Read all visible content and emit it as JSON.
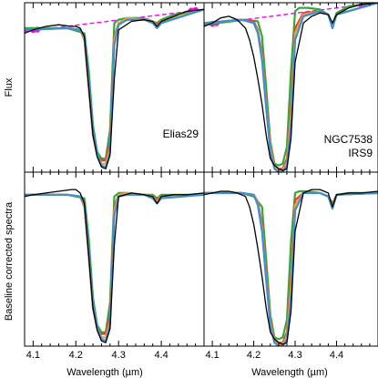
{
  "chart_data": [
    {
      "type": "line",
      "panel": "top-left",
      "annotation": [
        "Elias29"
      ],
      "ylabel": "Flux",
      "xlim": [
        4.08,
        4.5
      ],
      "ylim": [
        0.0,
        1.0
      ],
      "baseline": {
        "x": [
          4.08,
          4.5
        ],
        "y": [
          0.83,
          0.96
        ]
      },
      "baseline_points": {
        "x": [
          4.1,
          4.11,
          4.47,
          4.48
        ],
        "y": [
          0.839,
          0.842,
          0.954,
          0.957
        ]
      },
      "series": [
        {
          "color": "#000000",
          "x": [
            4.08,
            4.1,
            4.13,
            4.16,
            4.19,
            4.2,
            4.21,
            4.22,
            4.23,
            4.24,
            4.25,
            4.26,
            4.27,
            4.28,
            4.29,
            4.3,
            4.33,
            4.36,
            4.38,
            4.39,
            4.4,
            4.43,
            4.46,
            4.5
          ],
          "y": [
            0.82,
            0.84,
            0.86,
            0.87,
            0.86,
            0.86,
            0.85,
            0.8,
            0.5,
            0.22,
            0.09,
            0.03,
            0.02,
            0.1,
            0.55,
            0.84,
            0.89,
            0.9,
            0.89,
            0.86,
            0.89,
            0.92,
            0.95,
            0.96
          ]
        },
        {
          "color": "#33aa33",
          "x": [
            4.08,
            4.18,
            4.22,
            4.23,
            4.24,
            4.25,
            4.26,
            4.27,
            4.28,
            4.29,
            4.3,
            4.32,
            4.35,
            4.37,
            4.38,
            4.39,
            4.4,
            4.43,
            4.5
          ],
          "y": [
            0.85,
            0.85,
            0.82,
            0.6,
            0.28,
            0.12,
            0.08,
            0.08,
            0.25,
            0.88,
            0.9,
            0.91,
            0.91,
            0.9,
            0.89,
            0.88,
            0.9,
            0.93,
            0.96
          ]
        },
        {
          "color": "#e8402a",
          "x": [
            4.08,
            4.18,
            4.21,
            4.22,
            4.23,
            4.24,
            4.25,
            4.26,
            4.27,
            4.28,
            4.29,
            4.3,
            4.32,
            4.36,
            4.38,
            4.39,
            4.4,
            4.5
          ],
          "y": [
            0.84,
            0.85,
            0.84,
            0.78,
            0.5,
            0.22,
            0.1,
            0.07,
            0.07,
            0.18,
            0.8,
            0.88,
            0.9,
            0.9,
            0.89,
            0.87,
            0.89,
            0.96
          ]
        },
        {
          "color": "#f0a040",
          "x": [
            4.08,
            4.18,
            4.21,
            4.22,
            4.23,
            4.24,
            4.25,
            4.26,
            4.27,
            4.28,
            4.29,
            4.3,
            4.32,
            4.36,
            4.38,
            4.39,
            4.4,
            4.5
          ],
          "y": [
            0.84,
            0.85,
            0.84,
            0.79,
            0.52,
            0.23,
            0.1,
            0.05,
            0.05,
            0.14,
            0.78,
            0.88,
            0.91,
            0.9,
            0.89,
            0.86,
            0.89,
            0.96
          ]
        },
        {
          "color": "#3a8fd8",
          "x": [
            4.08,
            4.18,
            4.21,
            4.22,
            4.23,
            4.24,
            4.25,
            4.26,
            4.27,
            4.28,
            4.29,
            4.3,
            4.32,
            4.36,
            4.38,
            4.39,
            4.4,
            4.5
          ],
          "y": [
            0.84,
            0.85,
            0.84,
            0.8,
            0.55,
            0.25,
            0.11,
            0.04,
            0.03,
            0.12,
            0.75,
            0.87,
            0.9,
            0.9,
            0.88,
            0.85,
            0.88,
            0.96
          ]
        }
      ]
    },
    {
      "type": "line",
      "panel": "top-right",
      "annotation": [
        "NGC7538",
        "IRS9"
      ],
      "xlim": [
        4.08,
        4.5
      ],
      "ylim": [
        0.0,
        1.0
      ],
      "baseline": {
        "x": [
          4.08,
          4.5
        ],
        "y": [
          0.87,
          1.0
        ]
      },
      "baseline_points": {
        "x": [
          4.1,
          4.11,
          4.46,
          4.47
        ],
        "y": [
          0.876,
          0.879,
          0.986,
          0.989
        ]
      },
      "series": [
        {
          "color": "#000000",
          "x": [
            4.08,
            4.1,
            4.12,
            4.14,
            4.16,
            4.18,
            4.19,
            4.2,
            4.21,
            4.22,
            4.23,
            4.24,
            4.25,
            4.26,
            4.27,
            4.28,
            4.29,
            4.3,
            4.32,
            4.34,
            4.36,
            4.38,
            4.39,
            4.4,
            4.43,
            4.46,
            4.5
          ],
          "y": [
            0.86,
            0.88,
            0.91,
            0.92,
            0.9,
            0.85,
            0.78,
            0.68,
            0.55,
            0.4,
            0.22,
            0.08,
            0.04,
            0.02,
            0.01,
            0.02,
            0.2,
            0.65,
            0.88,
            0.92,
            0.94,
            0.93,
            0.88,
            0.93,
            0.97,
            0.99,
            1.0
          ]
        },
        {
          "color": "#33aa33",
          "x": [
            4.08,
            4.18,
            4.21,
            4.22,
            4.23,
            4.24,
            4.25,
            4.26,
            4.27,
            4.28,
            4.29,
            4.3,
            4.31,
            4.33,
            4.36,
            4.38,
            4.39,
            4.4,
            4.43,
            4.5
          ],
          "y": [
            0.87,
            0.9,
            0.89,
            0.8,
            0.5,
            0.18,
            0.05,
            0.04,
            0.05,
            0.15,
            0.6,
            0.95,
            0.97,
            0.97,
            0.96,
            0.93,
            0.87,
            0.94,
            0.98,
            1.0
          ]
        },
        {
          "color": "#e8402a",
          "x": [
            4.08,
            4.17,
            4.2,
            4.21,
            4.22,
            4.23,
            4.24,
            4.25,
            4.26,
            4.27,
            4.28,
            4.29,
            4.3,
            4.32,
            4.36,
            4.38,
            4.39,
            4.4,
            4.5
          ],
          "y": [
            0.88,
            0.9,
            0.89,
            0.84,
            0.7,
            0.42,
            0.15,
            0.04,
            0.02,
            0.02,
            0.08,
            0.4,
            0.85,
            0.94,
            0.95,
            0.93,
            0.86,
            0.93,
            1.0
          ]
        },
        {
          "color": "#f0a040",
          "x": [
            4.08,
            4.17,
            4.2,
            4.21,
            4.22,
            4.23,
            4.24,
            4.25,
            4.26,
            4.27,
            4.28,
            4.29,
            4.3,
            4.32,
            4.36,
            4.38,
            4.39,
            4.4,
            4.5
          ],
          "y": [
            0.88,
            0.9,
            0.88,
            0.83,
            0.68,
            0.4,
            0.14,
            0.03,
            0.01,
            0.01,
            0.06,
            0.35,
            0.82,
            0.93,
            0.95,
            0.93,
            0.86,
            0.93,
            1.0
          ]
        },
        {
          "color": "#3a8fd8",
          "x": [
            4.08,
            4.17,
            4.2,
            4.21,
            4.22,
            4.23,
            4.24,
            4.25,
            4.26,
            4.27,
            4.28,
            4.29,
            4.3,
            4.32,
            4.36,
            4.38,
            4.39,
            4.4,
            4.5
          ],
          "y": [
            0.88,
            0.9,
            0.88,
            0.82,
            0.66,
            0.38,
            0.12,
            0.02,
            0.0,
            0.0,
            0.04,
            0.28,
            0.78,
            0.92,
            0.95,
            0.93,
            0.85,
            0.93,
            1.0
          ]
        }
      ]
    },
    {
      "type": "line",
      "panel": "bottom-left",
      "ylabel": "Baseline corrected spectra",
      "xlabel": "Wavelength (µm)",
      "xlim": [
        4.08,
        4.5
      ],
      "ylim": [
        0.0,
        1.0
      ],
      "x_ticks": [
        4.1,
        4.2,
        4.3,
        4.4
      ],
      "series": [
        {
          "color": "#000000",
          "x": [
            4.08,
            4.1,
            4.13,
            4.16,
            4.19,
            4.2,
            4.21,
            4.22,
            4.23,
            4.24,
            4.25,
            4.26,
            4.27,
            4.28,
            4.29,
            4.3,
            4.33,
            4.36,
            4.38,
            4.39,
            4.4,
            4.43,
            4.46,
            4.5
          ],
          "y": [
            0.86,
            0.87,
            0.88,
            0.89,
            0.9,
            0.9,
            0.88,
            0.82,
            0.52,
            0.22,
            0.09,
            0.03,
            0.02,
            0.1,
            0.58,
            0.86,
            0.88,
            0.87,
            0.86,
            0.82,
            0.86,
            0.87,
            0.87,
            0.88
          ]
        },
        {
          "color": "#33aa33",
          "x": [
            4.08,
            4.18,
            4.22,
            4.23,
            4.24,
            4.25,
            4.26,
            4.27,
            4.28,
            4.29,
            4.3,
            4.32,
            4.36,
            4.38,
            4.39,
            4.4,
            4.43,
            4.5
          ],
          "y": [
            0.87,
            0.87,
            0.85,
            0.62,
            0.28,
            0.12,
            0.08,
            0.08,
            0.25,
            0.86,
            0.88,
            0.88,
            0.87,
            0.87,
            0.85,
            0.87,
            0.87,
            0.87
          ]
        },
        {
          "color": "#e8402a",
          "x": [
            4.08,
            4.18,
            4.21,
            4.22,
            4.23,
            4.24,
            4.25,
            4.26,
            4.27,
            4.28,
            4.29,
            4.3,
            4.32,
            4.36,
            4.38,
            4.39,
            4.4,
            4.5
          ],
          "y": [
            0.87,
            0.87,
            0.86,
            0.8,
            0.52,
            0.22,
            0.1,
            0.07,
            0.07,
            0.18,
            0.8,
            0.87,
            0.88,
            0.87,
            0.86,
            0.84,
            0.86,
            0.87
          ]
        },
        {
          "color": "#f0a040",
          "x": [
            4.08,
            4.18,
            4.21,
            4.22,
            4.23,
            4.24,
            4.25,
            4.26,
            4.27,
            4.28,
            4.29,
            4.3,
            4.32,
            4.36,
            4.38,
            4.39,
            4.4,
            4.5
          ],
          "y": [
            0.87,
            0.87,
            0.86,
            0.81,
            0.54,
            0.23,
            0.1,
            0.05,
            0.05,
            0.14,
            0.78,
            0.87,
            0.88,
            0.87,
            0.86,
            0.83,
            0.86,
            0.87
          ]
        },
        {
          "color": "#3a8fd8",
          "x": [
            4.08,
            4.18,
            4.21,
            4.22,
            4.23,
            4.24,
            4.25,
            4.26,
            4.27,
            4.28,
            4.29,
            4.3,
            4.32,
            4.36,
            4.38,
            4.39,
            4.4,
            4.5
          ],
          "y": [
            0.87,
            0.87,
            0.86,
            0.82,
            0.56,
            0.25,
            0.11,
            0.04,
            0.03,
            0.12,
            0.75,
            0.86,
            0.87,
            0.87,
            0.85,
            0.82,
            0.85,
            0.87
          ]
        }
      ]
    },
    {
      "type": "line",
      "panel": "bottom-right",
      "xlabel": "Wavelength (µm)",
      "xlim": [
        4.08,
        4.5
      ],
      "ylim": [
        0.0,
        1.0
      ],
      "x_ticks": [
        4.1,
        4.2,
        4.3,
        4.4
      ],
      "series": [
        {
          "color": "#000000",
          "x": [
            4.08,
            4.1,
            4.12,
            4.14,
            4.16,
            4.18,
            4.19,
            4.2,
            4.21,
            4.22,
            4.23,
            4.24,
            4.25,
            4.26,
            4.27,
            4.28,
            4.29,
            4.3,
            4.32,
            4.34,
            4.36,
            4.38,
            4.39,
            4.4,
            4.43,
            4.46,
            4.5
          ],
          "y": [
            0.87,
            0.88,
            0.89,
            0.89,
            0.88,
            0.86,
            0.8,
            0.7,
            0.56,
            0.4,
            0.22,
            0.08,
            0.04,
            0.02,
            0.01,
            0.02,
            0.2,
            0.66,
            0.88,
            0.9,
            0.9,
            0.88,
            0.8,
            0.87,
            0.88,
            0.88,
            0.89
          ]
        },
        {
          "color": "#33aa33",
          "x": [
            4.08,
            4.17,
            4.2,
            4.22,
            4.23,
            4.24,
            4.25,
            4.26,
            4.27,
            4.28,
            4.29,
            4.3,
            4.31,
            4.33,
            4.36,
            4.38,
            4.39,
            4.4,
            4.43,
            4.5
          ],
          "y": [
            0.88,
            0.88,
            0.86,
            0.8,
            0.5,
            0.18,
            0.05,
            0.04,
            0.05,
            0.15,
            0.6,
            0.88,
            0.89,
            0.89,
            0.88,
            0.86,
            0.82,
            0.87,
            0.88,
            0.88
          ]
        },
        {
          "color": "#e8402a",
          "x": [
            4.08,
            4.17,
            4.2,
            4.21,
            4.22,
            4.23,
            4.24,
            4.25,
            4.26,
            4.27,
            4.28,
            4.29,
            4.3,
            4.32,
            4.36,
            4.38,
            4.39,
            4.4,
            4.5
          ],
          "y": [
            0.88,
            0.88,
            0.87,
            0.83,
            0.7,
            0.42,
            0.15,
            0.04,
            0.02,
            0.02,
            0.08,
            0.4,
            0.84,
            0.88,
            0.88,
            0.86,
            0.81,
            0.87,
            0.88
          ]
        },
        {
          "color": "#f0a040",
          "x": [
            4.08,
            4.17,
            4.2,
            4.21,
            4.22,
            4.23,
            4.24,
            4.25,
            4.26,
            4.27,
            4.28,
            4.29,
            4.3,
            4.32,
            4.36,
            4.38,
            4.39,
            4.4,
            4.5
          ],
          "y": [
            0.88,
            0.88,
            0.87,
            0.82,
            0.68,
            0.4,
            0.14,
            0.03,
            0.01,
            0.01,
            0.06,
            0.35,
            0.81,
            0.88,
            0.88,
            0.86,
            0.8,
            0.87,
            0.88
          ]
        },
        {
          "color": "#3a8fd8",
          "x": [
            4.08,
            4.17,
            4.2,
            4.21,
            4.22,
            4.23,
            4.24,
            4.25,
            4.26,
            4.27,
            4.28,
            4.29,
            4.3,
            4.32,
            4.36,
            4.38,
            4.39,
            4.4,
            4.5
          ],
          "y": [
            0.88,
            0.88,
            0.87,
            0.81,
            0.66,
            0.38,
            0.12,
            0.02,
            0.0,
            0.0,
            0.04,
            0.28,
            0.78,
            0.88,
            0.88,
            0.86,
            0.79,
            0.87,
            0.88
          ]
        }
      ]
    }
  ],
  "style": {
    "baseline_color": "#ff00ff",
    "axis_color": "#000000"
  }
}
